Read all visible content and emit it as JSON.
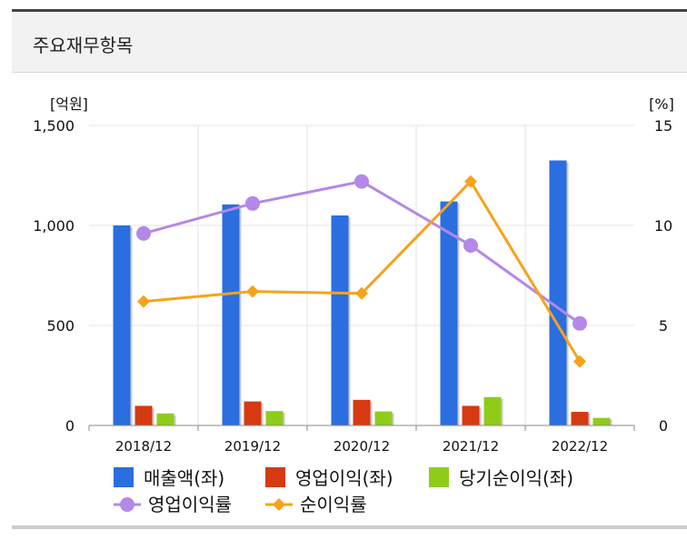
{
  "header": {
    "title": "주요재무항목"
  },
  "colors": {
    "revenue": "#2a6ee0",
    "operating_profit": "#d63a12",
    "net_income": "#8fcc1a",
    "op_margin": "#b388e8",
    "net_margin": "#f7a21b"
  },
  "chart_data": {
    "type": "bar",
    "categories": [
      "2018/12",
      "2019/12",
      "2020/12",
      "2021/12",
      "2022/12"
    ],
    "left_axis": {
      "unit_label": "[억원]",
      "ylim": [
        0,
        1500
      ],
      "ticks": [
        0,
        500,
        1000,
        1500
      ],
      "tick_labels": [
        "0",
        "500",
        "1,000",
        "1,500"
      ]
    },
    "right_axis": {
      "unit_label": "[%]",
      "ylim": [
        0,
        15
      ],
      "ticks": [
        0,
        5,
        10,
        15
      ],
      "tick_labels": [
        "0",
        "5",
        "10",
        "15"
      ]
    },
    "series": [
      {
        "name": "매출액(좌)",
        "kind": "bar",
        "axis": "left",
        "color": "#2a6ee0",
        "values": [
          1000,
          1105,
          1050,
          1120,
          1325
        ]
      },
      {
        "name": "영업이익(좌)",
        "kind": "bar",
        "axis": "left",
        "color": "#d63a12",
        "values": [
          98,
          120,
          128,
          98,
          68
        ]
      },
      {
        "name": "당기순이익(좌)",
        "kind": "bar",
        "axis": "left",
        "color": "#8fcc1a",
        "values": [
          60,
          72,
          70,
          142,
          38
        ]
      },
      {
        "name": "영업이익률",
        "kind": "line",
        "axis": "right",
        "marker": "circle",
        "color": "#b388e8",
        "values": [
          9.6,
          11.1,
          12.2,
          9.0,
          5.1
        ]
      },
      {
        "name": "순이익률",
        "kind": "line",
        "axis": "right",
        "marker": "diamond",
        "color": "#f7a21b",
        "values": [
          6.2,
          6.7,
          6.6,
          12.2,
          3.2
        ]
      }
    ],
    "grid": true,
    "legend_position": "bottom"
  }
}
